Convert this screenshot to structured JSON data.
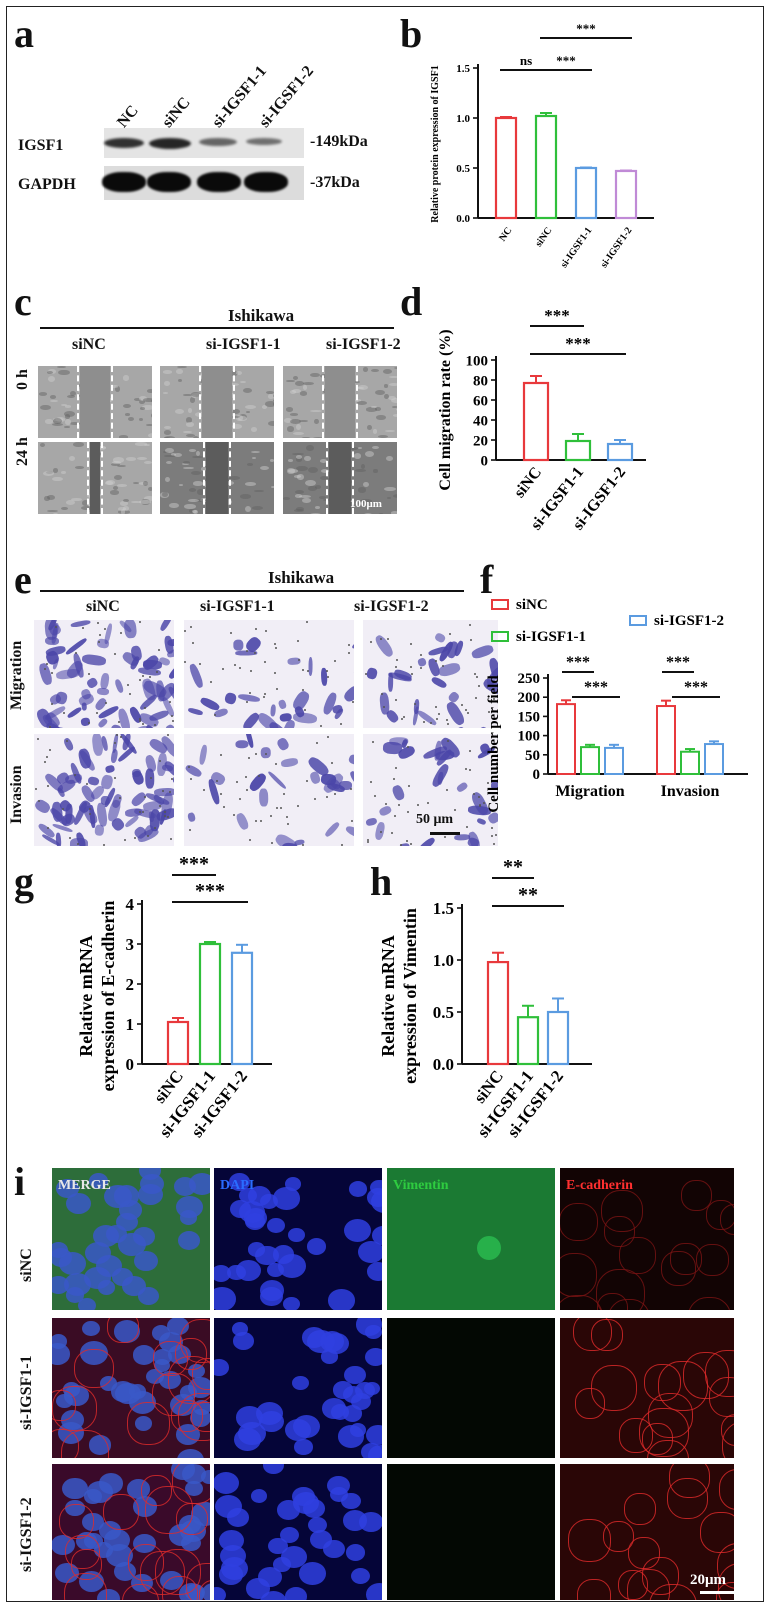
{
  "panels": {
    "a": {
      "letter": "a",
      "lanes": [
        "NC",
        "siNC",
        "si-IGSF1-1",
        "si-IGSF1-2"
      ],
      "rows": [
        {
          "name": "IGSF1",
          "size": "-149kDa"
        },
        {
          "name": "GAPDH",
          "size": "-37kDa"
        }
      ]
    },
    "b": {
      "letter": "b",
      "ylabel": "Relative protein expression of IGSF1",
      "categories": [
        "NC",
        "siNC",
        "si-IGSF1-1",
        "si-IGSF1-2"
      ],
      "values": [
        1.0,
        1.02,
        0.5,
        0.47
      ],
      "errors": [
        0.01,
        0.03,
        0.005,
        0.005
      ],
      "yticks": [
        "0.0",
        "0.5",
        "1.0",
        "1.5"
      ],
      "sig": [
        "ns",
        "***",
        "***"
      ]
    },
    "c": {
      "letter": "c",
      "cell_line": "Ishikawa",
      "groups": [
        "siNC",
        "si-IGSF1-1",
        "si-IGSF1-2"
      ],
      "times": [
        "0 h",
        "24 h"
      ],
      "scale": "100μm"
    },
    "d": {
      "letter": "d",
      "ylabel": "Cell migration rate (%)",
      "categories": [
        "siNC",
        "si-IGSF1-1",
        "si-IGSF1-2"
      ],
      "values": [
        77,
        19,
        16
      ],
      "errors": [
        7,
        7,
        4
      ],
      "yticks": [
        "0",
        "20",
        "40",
        "60",
        "80",
        "100"
      ],
      "sig": [
        "***",
        "***"
      ]
    },
    "e": {
      "letter": "e",
      "cell_line": "Ishikawa",
      "groups": [
        "siNC",
        "si-IGSF1-1",
        "si-IGSF1-2"
      ],
      "rows": [
        "Migration",
        "Invasion"
      ],
      "scale": "50 μm"
    },
    "f": {
      "letter": "f",
      "ylabel": "Cell number per field",
      "legend": [
        "siNC",
        "si-IGSF1-1",
        "si-IGSF1-2"
      ],
      "groups": [
        "Migration",
        "Invasion"
      ],
      "values": [
        [
          182,
          70,
          68
        ],
        [
          177,
          58,
          78
        ]
      ],
      "errors": [
        [
          10,
          6,
          8
        ],
        [
          14,
          7,
          7
        ]
      ],
      "yticks": [
        "0",
        "50",
        "100",
        "150",
        "200",
        "250"
      ],
      "sig": [
        "***",
        "***",
        "***",
        "***"
      ]
    },
    "g": {
      "letter": "g",
      "ylabel_line1": "Relative mRNA",
      "ylabel_line2": "expression of E-cadherin",
      "categories": [
        "siNC",
        "si-IGSF1-1",
        "si-IGSF1-2"
      ],
      "values": [
        1.05,
        3.0,
        2.78
      ],
      "errors": [
        0.1,
        0.05,
        0.2
      ],
      "yticks": [
        "0",
        "1",
        "2",
        "3",
        "4"
      ],
      "sig": [
        "***",
        "***"
      ]
    },
    "h": {
      "letter": "h",
      "ylabel_line1": "Relative mRNA",
      "ylabel_line2": "expression of Vimentin",
      "categories": [
        "siNC",
        "si-IGSF1-1",
        "si-IGSF1-2"
      ],
      "values": [
        0.98,
        0.45,
        0.5
      ],
      "errors": [
        0.09,
        0.11,
        0.13
      ],
      "yticks": [
        "0.0",
        "0.5",
        "1.0",
        "1.5"
      ],
      "sig": [
        "**",
        "**"
      ]
    },
    "i": {
      "letter": "i",
      "channels": [
        "MERGE",
        "DAPI",
        "Vimentin",
        "E-cadherin"
      ],
      "channel_colors": [
        "#e8e8e8",
        "#2a6cff",
        "#2ecc40",
        "#ff3030"
      ],
      "rows": [
        "siNC",
        "si-IGSF1-1",
        "si-IGSF1-2"
      ],
      "scale": "20μm"
    }
  },
  "colors": {
    "red": "#e8393c",
    "green": "#2fbf3a",
    "blue": "#5b9be0",
    "purple": "#c08ad6"
  }
}
